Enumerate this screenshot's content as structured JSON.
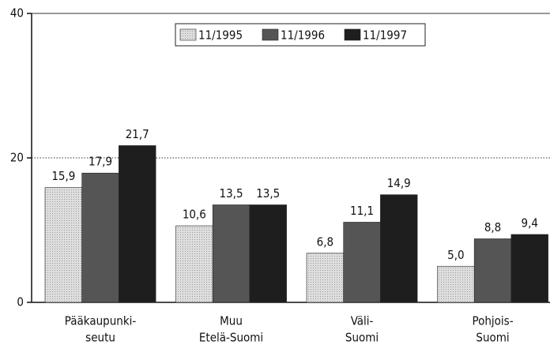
{
  "chart_data": {
    "type": "bar",
    "categories": [
      [
        "Pääkaupunki-",
        "seutu"
      ],
      [
        "Muu",
        "Etelä-Suomi"
      ],
      [
        "Väli-",
        "Suomi"
      ],
      [
        "Pohjois-",
        "Suomi"
      ]
    ],
    "series": [
      {
        "name": "11/1995",
        "color": "#d6d6d6",
        "values": [
          15.9,
          10.6,
          6.8,
          5.0
        ],
        "value_labels": [
          "15,9",
          "10,6",
          "6,8",
          "5,0"
        ]
      },
      {
        "name": "11/1996",
        "color": "#555555",
        "values": [
          17.9,
          13.5,
          11.1,
          8.8
        ],
        "value_labels": [
          "17,9",
          "13,5",
          "11,1",
          "8,8"
        ]
      },
      {
        "name": "11/1997",
        "color": "#1e1e1e",
        "values": [
          21.7,
          13.5,
          14.9,
          9.4
        ],
        "value_labels": [
          "21,7",
          "13,5",
          "14,9",
          "9,4"
        ]
      }
    ],
    "ylim": [
      0,
      40
    ],
    "yticks": [
      0,
      20,
      40
    ],
    "grid": true,
    "legend": "top"
  }
}
